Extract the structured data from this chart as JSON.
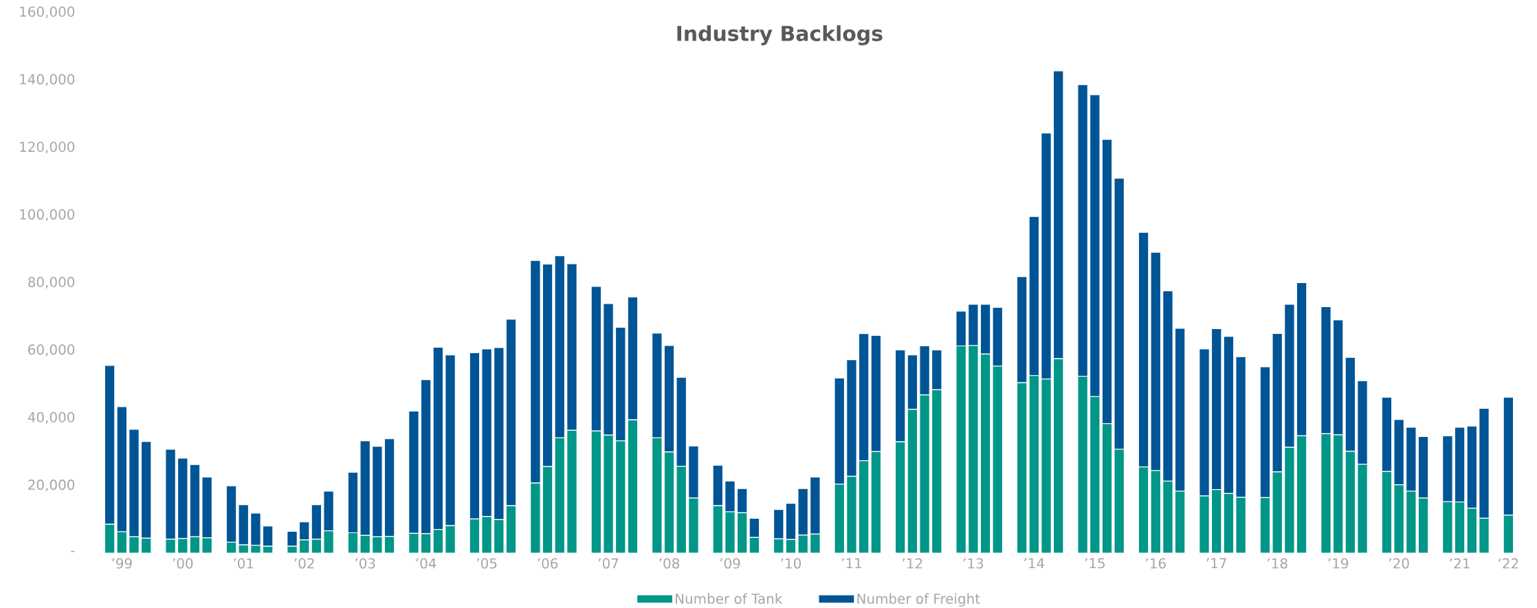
{
  "chart_data": {
    "type": "bar",
    "title": "Industry Backlogs",
    "stacked": true,
    "legend": "bottom",
    "categories": [
      null,
      "’99",
      null,
      null,
      null,
      null,
      "’00",
      null,
      null,
      null,
      null,
      "’01",
      null,
      null,
      null,
      null,
      "’02",
      null,
      null,
      null,
      null,
      "’03",
      null,
      null,
      null,
      null,
      "’04",
      null,
      null,
      null,
      null,
      "’05",
      null,
      null,
      null,
      null,
      "’06",
      null,
      null,
      null,
      null,
      "’07",
      null,
      null,
      null,
      null,
      "’08",
      null,
      null,
      null,
      null,
      "’09",
      null,
      null,
      null,
      null,
      "’10",
      null,
      null,
      null,
      null,
      "’11",
      null,
      null,
      null,
      null,
      "’12",
      null,
      null,
      null,
      null,
      "’13",
      null,
      null,
      null,
      null,
      "’14",
      null,
      null,
      null,
      null,
      "’15",
      null,
      null,
      null,
      null,
      "’16",
      null,
      null,
      null,
      null,
      "’17",
      null,
      null,
      null,
      null,
      "’18",
      null,
      null,
      null,
      null,
      "’19",
      null,
      null,
      null,
      null,
      "’20",
      null,
      null,
      null,
      null,
      "’21",
      null,
      null,
      null,
      "‘22"
    ],
    "ylim": [
      0,
      160000
    ],
    "yticks": [
      {
        "value": 0,
        "label": "-"
      },
      {
        "value": 20000,
        "label": "20,000"
      },
      {
        "value": 40000,
        "label": "40,000"
      },
      {
        "value": 60000,
        "label": "60,000"
      },
      {
        "value": 80000,
        "label": "80,000"
      },
      {
        "value": 100000,
        "label": "100,000"
      },
      {
        "value": 120000,
        "label": "120,000"
      },
      {
        "value": 140000,
        "label": "140,000"
      },
      {
        "value": 160000,
        "label": "160,000"
      }
    ],
    "series": [
      {
        "name": "Number of Tank",
        "color": "#009688",
        "values": [
          8500,
          6300,
          4800,
          4400,
          null,
          4100,
          4300,
          4800,
          4500,
          null,
          3200,
          2400,
          2300,
          2000,
          null,
          2000,
          3900,
          4100,
          6600,
          null,
          6000,
          5200,
          4800,
          4900,
          null,
          5800,
          5700,
          7000,
          8100,
          null,
          10100,
          10800,
          9900,
          14000,
          null,
          20700,
          25600,
          34100,
          36300,
          null,
          36100,
          34900,
          33200,
          39400,
          null,
          34100,
          29900,
          25700,
          16300,
          null,
          14000,
          12200,
          11900,
          4600,
          null,
          4200,
          4000,
          5300,
          5600,
          null,
          20400,
          22700,
          27300,
          30000,
          null,
          32900,
          42500,
          46800,
          48300,
          null,
          61300,
          61400,
          58900,
          55300,
          null,
          50400,
          52500,
          51500,
          57500,
          null,
          52300,
          46300,
          38300,
          30700,
          null,
          25500,
          24400,
          21300,
          18300,
          null,
          16900,
          18800,
          17600,
          16500,
          null,
          16400,
          24000,
          31300,
          34700,
          null,
          35300,
          35000,
          30100,
          26300,
          null,
          24100,
          20200,
          18300,
          16300,
          null,
          15200,
          15100,
          13300,
          10300,
          null,
          11200
        ]
      },
      {
        "name": "Number of Freight",
        "color": "#005596",
        "values": [
          47000,
          37000,
          31800,
          28600,
          null,
          26600,
          23800,
          21400,
          18000,
          null,
          16700,
          11900,
          9500,
          6000,
          null,
          4400,
          5300,
          10200,
          11700,
          null,
          17900,
          28000,
          26800,
          28900,
          null,
          36200,
          45600,
          53900,
          50500,
          null,
          49200,
          49600,
          50900,
          55200,
          null,
          65900,
          59900,
          53900,
          49300,
          null,
          42800,
          38900,
          33600,
          36400,
          null,
          31000,
          31500,
          26300,
          15400,
          null,
          12000,
          9100,
          7200,
          5700,
          null,
          8700,
          10700,
          13800,
          16900,
          null,
          31400,
          34500,
          37600,
          34400,
          null,
          27200,
          16100,
          14500,
          11800,
          null,
          10300,
          12200,
          14700,
          17400,
          null,
          31400,
          47100,
          72800,
          85200,
          null,
          86300,
          89300,
          84100,
          80200,
          null,
          69400,
          64600,
          56300,
          48200,
          null,
          43500,
          47600,
          46500,
          41600,
          null,
          38700,
          41000,
          42300,
          45300,
          null,
          37600,
          34000,
          27800,
          24700,
          null,
          22000,
          19300,
          18900,
          18200,
          null,
          19500,
          22100,
          24300,
          32500,
          null,
          34900
        ]
      }
    ]
  }
}
